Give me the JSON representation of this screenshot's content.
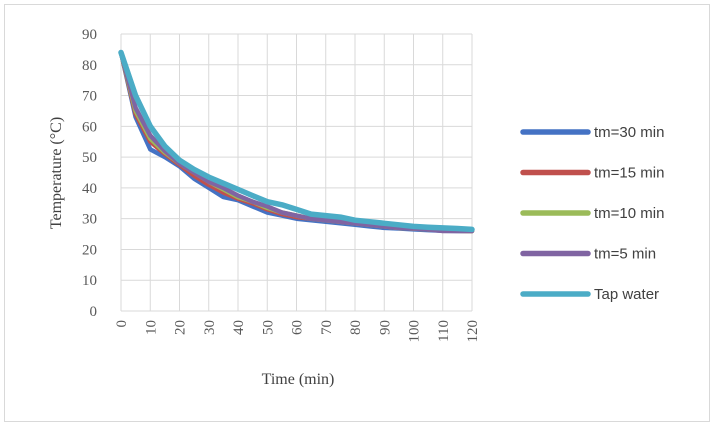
{
  "chart_data": {
    "type": "line",
    "title": "",
    "xlabel": "Time (min)",
    "ylabel": "Temperature (°C)",
    "xlim": [
      0,
      120
    ],
    "ylim": [
      0,
      90
    ],
    "x_ticks": [
      "0",
      "10",
      "20",
      "30",
      "40",
      "50",
      "60",
      "70",
      "80",
      "90",
      "100",
      "110",
      "120"
    ],
    "y_ticks": [
      "0",
      "10",
      "20",
      "30",
      "40",
      "50",
      "60",
      "70",
      "80",
      "90"
    ],
    "grid": true,
    "legend_position": "right",
    "series": [
      {
        "name": "tm=30 min",
        "color": "#4472c4",
        "x": [
          0,
          5,
          10,
          15,
          20,
          25,
          30,
          35,
          40,
          45,
          50,
          55,
          60,
          65,
          70,
          75,
          80,
          85,
          90,
          95,
          100,
          105,
          110,
          115,
          120
        ],
        "y": [
          84,
          63,
          52.5,
          50,
          47,
          43,
          40,
          37,
          36,
          34,
          32,
          31,
          30,
          29.5,
          29,
          28.5,
          28,
          27.5,
          27,
          26.8,
          26.5,
          26.3,
          26.1,
          26,
          26
        ]
      },
      {
        "name": "tm=15 min",
        "color": "#c0504d",
        "x": [
          0,
          5,
          10,
          15,
          20,
          25,
          30,
          35,
          40,
          45,
          50,
          55,
          60,
          65,
          70,
          75,
          80,
          85,
          90,
          95,
          100,
          105,
          110,
          115,
          120
        ],
        "y": [
          84,
          64,
          55,
          51,
          47.5,
          44,
          41,
          38.5,
          36.5,
          35,
          33,
          31.5,
          30.5,
          30,
          29.5,
          29,
          28.5,
          28,
          27.5,
          27,
          26.8,
          26.5,
          26.3,
          26.1,
          26
        ]
      },
      {
        "name": "tm=10 min",
        "color": "#9bbb59",
        "x": [
          0,
          5,
          10,
          15,
          20,
          25,
          30,
          35,
          40,
          45,
          50,
          55,
          60,
          65,
          70,
          75,
          80,
          85,
          90,
          95,
          100,
          105,
          110,
          115,
          120
        ],
        "y": [
          84,
          65,
          56,
          51.5,
          48,
          45,
          42,
          39.5,
          37,
          35.5,
          33.5,
          32,
          31,
          30,
          29.5,
          29,
          28.5,
          28,
          27.5,
          27,
          26.8,
          26.5,
          26.3,
          26.1,
          26
        ]
      },
      {
        "name": "tm=5 min",
        "color": "#8064a2",
        "x": [
          0,
          5,
          10,
          15,
          20,
          25,
          30,
          35,
          40,
          45,
          50,
          55,
          60,
          65,
          70,
          75,
          80,
          85,
          90,
          95,
          100,
          105,
          110,
          115,
          120
        ],
        "y": [
          84,
          66,
          57,
          52,
          48,
          45,
          42,
          40,
          37.5,
          35.5,
          34,
          32,
          31,
          30,
          29.5,
          29,
          28.5,
          28,
          27.5,
          27,
          26.8,
          26.5,
          26,
          26,
          26
        ]
      },
      {
        "name": "Tap water",
        "color": "#4bacc6",
        "x": [
          0,
          5,
          10,
          15,
          20,
          25,
          30,
          35,
          40,
          45,
          50,
          55,
          60,
          65,
          70,
          75,
          80,
          85,
          90,
          95,
          100,
          105,
          110,
          115,
          120
        ],
        "y": [
          84,
          70,
          60,
          53.5,
          49,
          46,
          43.5,
          41.5,
          39.5,
          37.5,
          35.5,
          34.5,
          33,
          31.5,
          31,
          30.5,
          29.5,
          29,
          28.5,
          28,
          27.5,
          27.2,
          27,
          26.8,
          26.5
        ]
      }
    ]
  }
}
